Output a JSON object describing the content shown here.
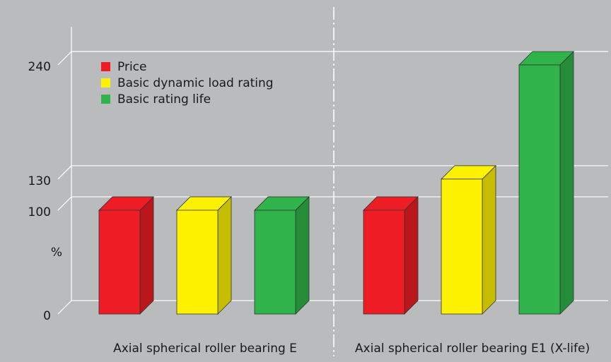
{
  "chart_data": {
    "type": "bar",
    "bar_style": "3d",
    "ylabel": "%",
    "yticks": [
      0,
      100,
      130,
      240
    ],
    "ylim": [
      0,
      240
    ],
    "grid": true,
    "legend_placement": "top-left",
    "background_color": "#b9bbbd",
    "series": [
      {
        "name": "Price",
        "color": "#ee1c24"
      },
      {
        "name": "Basic dynamic load rating",
        "color": "#fff200"
      },
      {
        "name": "Basic rating life",
        "color": "#2fb34a"
      }
    ],
    "groups": [
      {
        "label": "Axial spherical roller bearing E",
        "values": [
          100,
          100,
          100
        ]
      },
      {
        "label": "Axial spherical roller bearing E1 (X-life)",
        "values": [
          100,
          130,
          240
        ]
      }
    ]
  }
}
